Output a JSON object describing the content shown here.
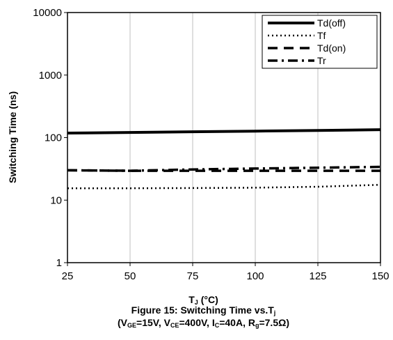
{
  "chart_data": {
    "type": "line",
    "title_line1_parts": [
      "Figure 15: Switching Time vs.T",
      "j"
    ],
    "title_line2_parts": [
      "(V",
      "GE",
      "=15V, V",
      "CE",
      "=400V, I",
      "C",
      "=40A, R",
      "g",
      "=7.5Ω)"
    ],
    "xlabel_parts": [
      "T",
      "J",
      " (°C)"
    ],
    "ylabel": "Switching Time (ns)",
    "x_ticks": [
      "25",
      "50",
      "75",
      "100",
      "125",
      "150"
    ],
    "y_ticks": [
      "1",
      "10",
      "100",
      "1000",
      "10000"
    ],
    "xlim": [
      25,
      150
    ],
    "ylim": [
      1,
      10000
    ],
    "y_scale": "log",
    "grid": "vertical",
    "legend_position": "top-right",
    "x": [
      25,
      50,
      75,
      100,
      125,
      150
    ],
    "series": [
      {
        "name": "Td(off)",
        "style": "solid",
        "values": [
          118,
          121,
          124,
          127,
          130,
          134
        ]
      },
      {
        "name": "Tf",
        "style": "dotted",
        "values": [
          15.5,
          15.5,
          15.6,
          15.8,
          16.4,
          17.6
        ]
      },
      {
        "name": "Td(on)",
        "style": "dashed",
        "values": [
          30,
          29.5,
          29.5,
          29.5,
          29.5,
          29.5
        ]
      },
      {
        "name": "Tr",
        "style": "dash-dot",
        "values": [
          30,
          29.5,
          31,
          32,
          33,
          34
        ]
      }
    ],
    "colors": {
      "line": "#000000",
      "background": "#ffffff"
    }
  }
}
